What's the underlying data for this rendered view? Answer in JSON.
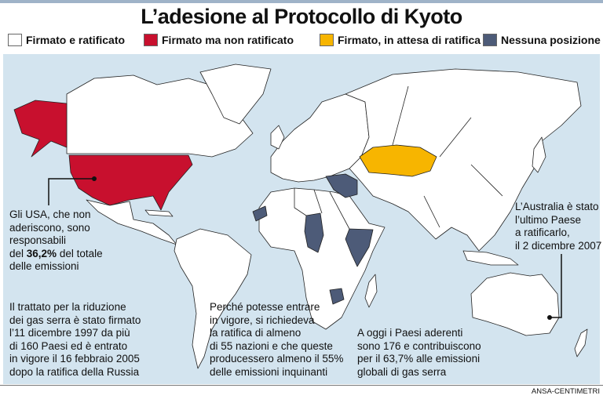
{
  "header": {
    "title": "L’adesione al Protocollo di Kyoto"
  },
  "legend": [
    {
      "label": "Firmato e ratificato",
      "color": "#ffffff"
    },
    {
      "label": "Firmato ma non ratificato",
      "color": "#c8102e"
    },
    {
      "label": "Firmato, in attesa di ratifica",
      "color": "#f7b500"
    },
    {
      "label": "Nessuna posizione",
      "color": "#4d5b78"
    }
  ],
  "annotations": {
    "usa": {
      "lines": [
        "Gli USA, che non",
        "aderiscono, sono",
        "responsabili"
      ],
      "highlight_line": {
        "before": "del ",
        "bold": "36,2%",
        "after": " del totale"
      },
      "last_line": "delle emissioni"
    },
    "australia": {
      "lines": [
        "L’Australia è stato",
        "l’ultimo Paese",
        "a ratificarlo,",
        "il 2 dicembre 2007"
      ]
    },
    "treaty": {
      "lines": [
        "Il trattato per la riduzione",
        "dei gas serra è stato firmato",
        "l’11 dicembre 1997 da più",
        "di 160 Paesi ed è entrato",
        "in vigore il 16 febbraio 2005",
        "dopo la ratifica della Russia"
      ]
    },
    "requirement": {
      "lines": [
        "Perché potesse entrare",
        "in vigore, si richiedeva",
        "la ratifica di almeno",
        "di 55 nazioni e che queste",
        "producessero almeno il 55%",
        "delle emissioni inquinanti"
      ]
    },
    "today": {
      "lines": [
        "A oggi i Paesi aderenti",
        "sono 176 e contribuiscono",
        "per il 63,7% alle emissioni",
        "globali di gas serra"
      ]
    }
  },
  "footer": {
    "credit": "ANSA-CENTIMETRI"
  }
}
